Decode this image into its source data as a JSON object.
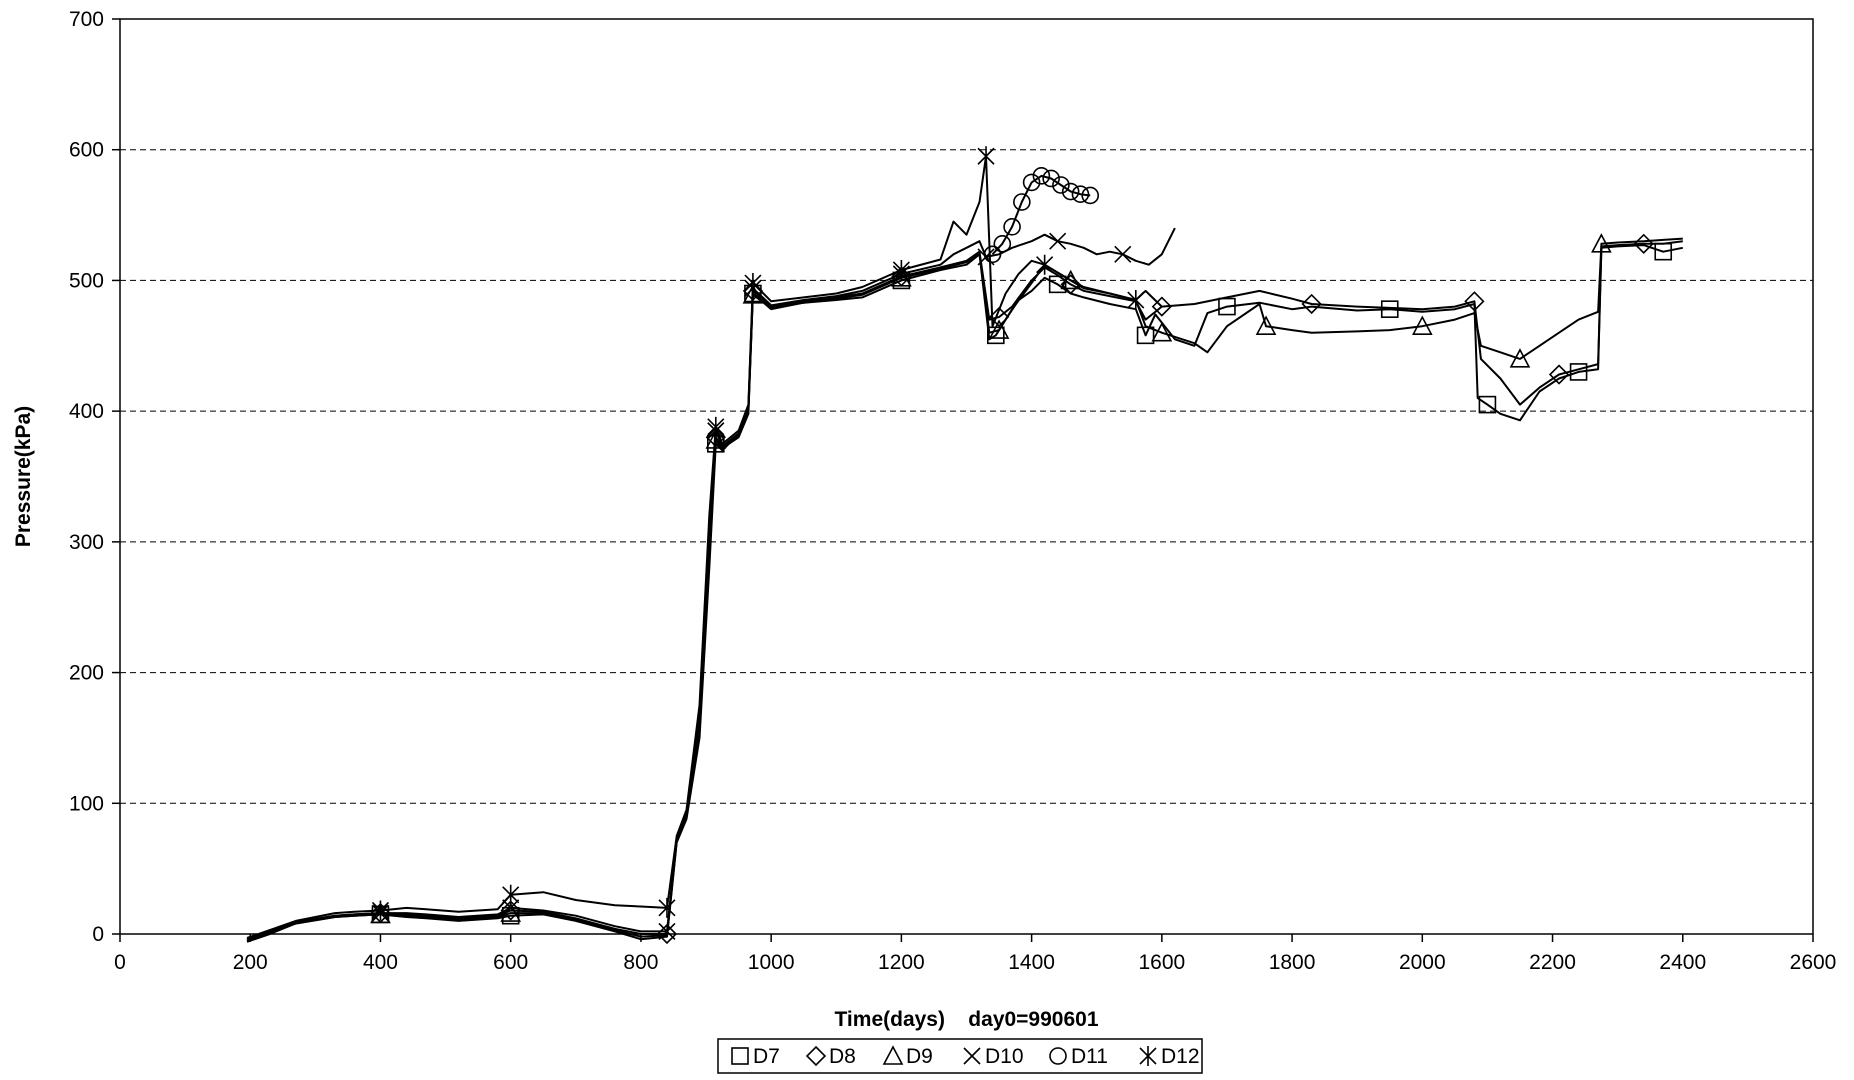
{
  "chart_data": {
    "type": "line",
    "title": "",
    "xlabel": "Time(days)    day0=990601",
    "ylabel": "Pressure(kPa)",
    "xlim": [
      0,
      2600
    ],
    "ylim": [
      0,
      700
    ],
    "xticks": [
      0,
      200,
      400,
      600,
      800,
      1000,
      1200,
      1400,
      1600,
      1800,
      2000,
      2200,
      2400,
      2600
    ],
    "yticks": [
      0,
      100,
      200,
      300,
      400,
      500,
      600,
      700
    ],
    "grid": "horizontal dashed",
    "legend_position": "bottom-center",
    "line_color": "#000000",
    "series": [
      {
        "name": "D7",
        "marker": "square",
        "x": [
          195,
          230,
          270,
          330,
          360,
          400,
          440,
          470,
          520,
          580,
          600,
          650,
          700,
          760,
          800,
          840,
          855,
          870,
          890,
          905,
          915,
          925,
          935,
          950,
          965,
          972,
          1000,
          1050,
          1100,
          1140,
          1200,
          1260,
          1300,
          1320,
          1335,
          1345,
          1360,
          1380,
          1400,
          1420,
          1440,
          1460,
          1480,
          1520,
          1560,
          1575,
          1590,
          1620,
          1650,
          1670,
          1700,
          1750,
          1800,
          1830,
          1900,
          1950,
          2000,
          2050,
          2080,
          2085,
          2100,
          2120,
          2150,
          2180,
          2210,
          2240,
          2270,
          2275,
          2300,
          2340,
          2370,
          2400
        ],
        "y": [
          -5,
          2,
          8,
          13,
          14,
          15,
          13,
          12,
          10,
          12,
          14,
          15,
          10,
          2,
          -4,
          -2,
          70,
          88,
          150,
          280,
          375,
          370,
          375,
          380,
          398,
          490,
          478,
          483,
          485,
          487,
          500,
          508,
          512,
          520,
          455,
          458,
          470,
          485,
          492,
          502,
          497,
          490,
          487,
          482,
          478,
          458,
          474,
          455,
          450,
          475,
          480,
          483,
          478,
          480,
          477,
          478,
          476,
          478,
          482,
          410,
          405,
          398,
          393,
          415,
          425,
          430,
          432,
          525,
          526,
          527,
          522,
          525
        ]
      },
      {
        "name": "D8",
        "marker": "diamond",
        "x": [
          195,
          230,
          270,
          330,
          360,
          400,
          440,
          470,
          520,
          580,
          600,
          650,
          700,
          760,
          800,
          840,
          855,
          870,
          890,
          905,
          915,
          925,
          935,
          950,
          965,
          972,
          1000,
          1050,
          1100,
          1140,
          1200,
          1260,
          1300,
          1320,
          1335,
          1350,
          1370,
          1400,
          1420,
          1440,
          1460,
          1480,
          1520,
          1560,
          1575,
          1600,
          1650,
          1700,
          1750,
          1800,
          1830,
          1900,
          1950,
          2000,
          2050,
          2080,
          2090,
          2120,
          2150,
          2180,
          2210,
          2240,
          2270,
          2275,
          2300,
          2340,
          2370,
          2400
        ],
        "y": [
          -5,
          1,
          9,
          14,
          15,
          16,
          15,
          14,
          12,
          14,
          18,
          17,
          12,
          4,
          0,
          0,
          72,
          90,
          160,
          300,
          380,
          372,
          376,
          382,
          402,
          492,
          480,
          484,
          487,
          490,
          503,
          510,
          515,
          522,
          470,
          472,
          480,
          500,
          510,
          504,
          497,
          492,
          488,
          484,
          470,
          480,
          482,
          487,
          492,
          486,
          482,
          480,
          479,
          478,
          480,
          484,
          440,
          425,
          405,
          418,
          428,
          432,
          436,
          526,
          527,
          528,
          528,
          530
        ]
      },
      {
        "name": "D9",
        "marker": "triangle",
        "x": [
          195,
          230,
          270,
          330,
          360,
          400,
          440,
          470,
          520,
          580,
          600,
          650,
          700,
          760,
          800,
          840,
          855,
          870,
          890,
          905,
          915,
          925,
          935,
          950,
          965,
          972,
          1000,
          1050,
          1100,
          1140,
          1200,
          1260,
          1300,
          1320,
          1335,
          1350,
          1370,
          1400,
          1420,
          1440,
          1460,
          1480,
          1520,
          1560,
          1575,
          1600,
          1650,
          1670,
          1700,
          1750,
          1760,
          1800,
          1830,
          1900,
          1950,
          2000,
          2050,
          2080,
          2090,
          2120,
          2150,
          2180,
          2210,
          2240,
          2270,
          2275,
          2300,
          2340,
          2370,
          2400
        ],
        "y": [
          -6,
          0,
          8,
          13,
          14,
          15,
          14,
          13,
          11,
          13,
          16,
          16,
          11,
          3,
          -2,
          -1,
          71,
          89,
          155,
          290,
          378,
          371,
          375,
          381,
          400,
          489,
          479,
          483,
          486,
          489,
          502,
          509,
          514,
          521,
          460,
          462,
          478,
          498,
          512,
          506,
          500,
          494,
          490,
          485,
          465,
          460,
          452,
          445,
          465,
          482,
          465,
          462,
          460,
          461,
          462,
          465,
          470,
          475,
          450,
          445,
          440,
          450,
          460,
          470,
          476,
          528,
          529,
          530,
          531,
          532
        ]
      },
      {
        "name": "D10",
        "marker": "x",
        "x": [
          195,
          230,
          270,
          330,
          360,
          400,
          440,
          470,
          520,
          580,
          600,
          650,
          700,
          760,
          800,
          840,
          855,
          870,
          890,
          905,
          915,
          925,
          935,
          950,
          965,
          972,
          1000,
          1050,
          1100,
          1140,
          1200,
          1260,
          1280,
          1300,
          1320,
          1330,
          1350,
          1370,
          1400,
          1420,
          1440,
          1460,
          1480,
          1500,
          1520,
          1540,
          1560,
          1580,
          1600,
          1620
        ],
        "y": [
          -4,
          2,
          9,
          14,
          15,
          16,
          16,
          15,
          13,
          15,
          20,
          18,
          14,
          6,
          2,
          2,
          73,
          92,
          165,
          310,
          385,
          373,
          377,
          383,
          403,
          494,
          481,
          485,
          488,
          492,
          505,
          512,
          520,
          525,
          530,
          518,
          520,
          525,
          530,
          535,
          530,
          528,
          525,
          520,
          522,
          520,
          515,
          512,
          520,
          540
        ]
      },
      {
        "name": "D11",
        "marker": "circle",
        "x": [
          1340,
          1355,
          1370,
          1385,
          1400,
          1415,
          1430,
          1445,
          1460,
          1475,
          1490
        ],
        "y": [
          520,
          528,
          541,
          560,
          575,
          580,
          578,
          573,
          568,
          566,
          565
        ]
      },
      {
        "name": "D12",
        "marker": "asterisk",
        "x": [
          195,
          230,
          270,
          330,
          360,
          400,
          440,
          470,
          520,
          580,
          600,
          650,
          700,
          760,
          800,
          840,
          855,
          870,
          890,
          905,
          915,
          925,
          935,
          950,
          965,
          972,
          1000,
          1050,
          1100,
          1140,
          1200,
          1260,
          1280,
          1300,
          1320,
          1330,
          1340,
          1360,
          1380,
          1400,
          1420,
          1440,
          1460,
          1480,
          1520,
          1560,
          1575,
          1600
        ],
        "y": [
          -3,
          3,
          10,
          16,
          17,
          18,
          20,
          19,
          17,
          19,
          30,
          32,
          26,
          22,
          21,
          20,
          75,
          95,
          175,
          320,
          388,
          375,
          379,
          385,
          405,
          498,
          484,
          487,
          490,
          495,
          508,
          516,
          545,
          535,
          560,
          595,
          465,
          490,
          505,
          515,
          512,
          506,
          500,
          495,
          490,
          485,
          492,
          480
        ]
      }
    ]
  }
}
